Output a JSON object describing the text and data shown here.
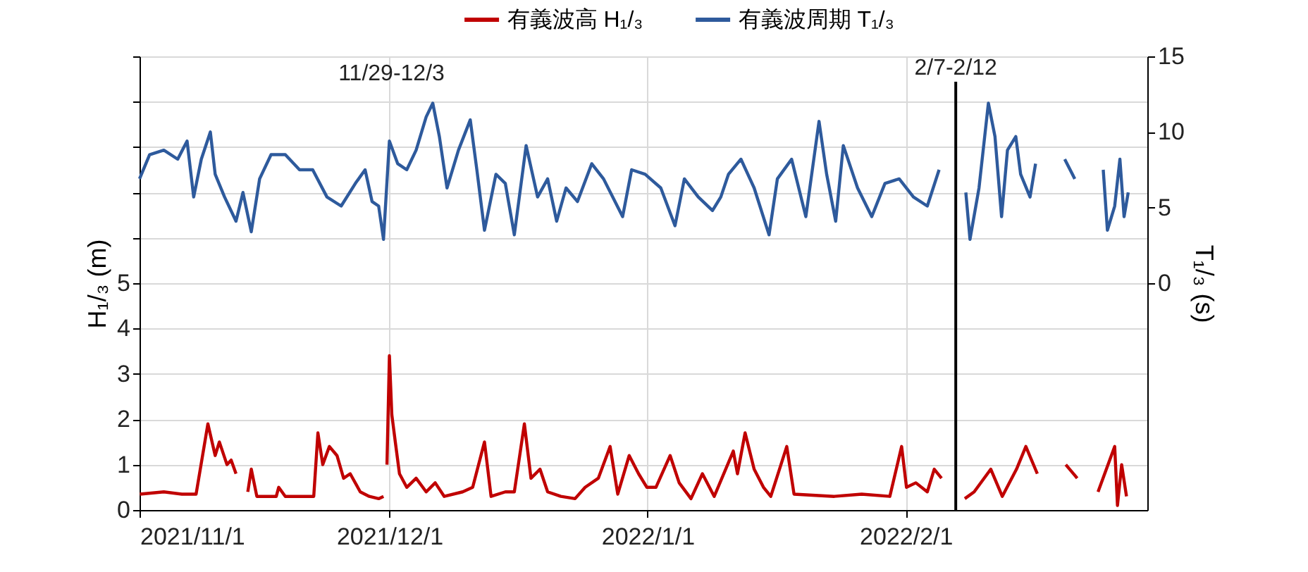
{
  "chart_data": {
    "type": "line",
    "xlabel": null,
    "ylabel": "H₁/₃ (m)",
    "y2label": "T₁/₃ (s)",
    "xlim": [
      "2021-11-01",
      "2022-03-02"
    ],
    "xticks": [
      {
        "value": "2021-11-01",
        "label": "2021/11/1"
      },
      {
        "value": "2021-12-01",
        "label": "2021/12/1"
      },
      {
        "value": "2022-01-01",
        "label": "2022/1/1"
      },
      {
        "value": "2022-02-01",
        "label": "2022/2/1"
      }
    ],
    "ylim": [
      0,
      10
    ],
    "yticks": [
      0,
      1,
      2,
      3,
      4,
      5,
      {
        "value": 6,
        "label": null
      },
      {
        "value": 7,
        "label": null
      },
      {
        "value": 8,
        "label": null
      },
      {
        "value": 9,
        "label": null
      },
      {
        "value": 10,
        "label": null
      }
    ],
    "y2lim": [
      -15,
      15
    ],
    "y2ticks": [
      0,
      5,
      10,
      15
    ],
    "grid": true,
    "legend": "top right",
    "line_style": "solid",
    "marker": "none",
    "ref_lines": [
      {
        "axis": "x",
        "value": "2022-02-07",
        "label": "2/7-2/12",
        "color": "#000000"
      }
    ],
    "annotations": [
      "11/29-12/3"
    ],
    "series": [
      {
        "name": "有義波高 H₁/₃",
        "color": "#c00000",
        "x": [
          "2021-11-01T01:00",
          "2021-11-03T22:00",
          "2021-11-06T02:00",
          "2021-11-07T19:00",
          "2021-11-09T05:00",
          "2021-11-10T02:00",
          "2021-11-10T14:00",
          "2021-11-11T12:00",
          "2021-11-12T00:00",
          "2021-11-12T14:00",
          "2021-11-13T06:00",
          "2021-11-14T00:00",
          "2021-11-14T10:00",
          "2021-11-15T02:00",
          "2021-11-17T10:00",
          "2021-11-17T17:00",
          "2021-11-18T12:00",
          "2021-11-21T22:00",
          "2021-11-22T10:00",
          "2021-11-23T00:00",
          "2021-11-23T19:00",
          "2021-11-24T17:00",
          "2021-11-25T12:00",
          "2021-11-26T07:00",
          "2021-11-27T12:00",
          "2021-11-28T14:00",
          "2021-11-29T17:00",
          "2021-11-30T07:00",
          "2021-11-30T12:00",
          "2021-11-30T17:00",
          "2021-12-01T00:00",
          "2021-12-01T07:00",
          "2021-12-01T17:00",
          "2021-12-02T05:00",
          "2021-12-03T02:00",
          "2021-12-04T05:00",
          "2021-12-05T10:00",
          "2021-12-06T12:00",
          "2021-12-07T14:00",
          "2021-12-09T19:00",
          "2021-12-11T00:00",
          "2021-12-12T10:00",
          "2021-12-13T05:00",
          "2021-12-14T22:00",
          "2021-12-16T00:00",
          "2021-12-17T05:00",
          "2021-12-18T00:00",
          "2021-12-19T02:00",
          "2021-12-20T00:00",
          "2021-12-21T14:00",
          "2021-12-23T07:00",
          "2021-12-24T12:00",
          "2021-12-26T02:00",
          "2021-12-27T12:00",
          "2021-12-28T10:00",
          "2021-12-29T19:00",
          "2021-12-30T22:00",
          "2021-12-31T22:00",
          "2022-01-02T00:00",
          "2022-01-03T17:00",
          "2022-01-04T19:00",
          "2022-01-06T05:00",
          "2022-01-07T14:00",
          "2022-01-09T00:00",
          "2022-01-11T07:00",
          "2022-01-11T19:00",
          "2022-01-12T17:00",
          "2022-01-13T19:00",
          "2022-01-14T22:00",
          "2022-01-15T19:00",
          "2022-01-17T17:00",
          "2022-01-18T14:00",
          "2022-01-23T10:00",
          "2022-01-26T17:00",
          "2022-01-30T02:00",
          "2022-01-31T12:00",
          "2022-02-01T02:00",
          "2022-02-02T05:00",
          "2022-02-03T14:00",
          "2022-02-04T10:00",
          "2022-02-05T07:00",
          "2022-02-06T12:00",
          "2022-02-08T02:00",
          "2022-02-09T05:00",
          "2022-02-11T05:00",
          "2022-02-12T14:00",
          "2022-02-14T07:00",
          "2022-02-15T10:00",
          "2022-02-16T19:00",
          "2022-02-18T12:00",
          "2022-02-20T05:00",
          "2022-02-21T14:00",
          "2022-02-23T00:00",
          "2022-02-24T02:00",
          "2022-02-26T02:00",
          "2022-02-26T10:00",
          "2022-02-26T22:00",
          "2022-02-27T12:00"
        ],
        "values": [
          0.35,
          0.4,
          0.35,
          0.35,
          1.9,
          1.2,
          1.5,
          1.0,
          1.1,
          0.8,
          null,
          0.4,
          0.9,
          0.3,
          0.3,
          0.5,
          0.3,
          0.3,
          1.7,
          1.0,
          1.4,
          1.2,
          0.7,
          0.8,
          0.4,
          0.3,
          0.25,
          0.3,
          null,
          1.0,
          3.4,
          2.1,
          1.5,
          0.8,
          0.5,
          0.7,
          0.4,
          0.6,
          0.3,
          0.4,
          0.5,
          1.5,
          0.3,
          0.4,
          0.4,
          1.9,
          0.7,
          0.9,
          0.4,
          0.3,
          0.25,
          0.5,
          0.7,
          1.4,
          0.35,
          1.2,
          0.8,
          0.5,
          0.5,
          1.2,
          0.6,
          0.25,
          0.8,
          0.3,
          1.3,
          0.8,
          1.7,
          0.9,
          0.5,
          0.3,
          1.4,
          0.35,
          0.3,
          0.35,
          0.3,
          1.4,
          0.5,
          0.6,
          0.4,
          0.9,
          0.7,
          null,
          0.25,
          0.4,
          0.9,
          0.3,
          0.9,
          1.4,
          0.8,
          null,
          1.0,
          0.7,
          null,
          0.4,
          1.4,
          0.1,
          1.0,
          0.3
        ]
      },
      {
        "name": "有義波周期 T₁/₃",
        "color": "#2e5a9c",
        "axis": "y2",
        "x": [
          "2021-11-01T00:00",
          "2021-11-02T05:00",
          "2021-11-03T22:00",
          "2021-11-05T14:00",
          "2021-11-06T17:00",
          "2021-11-07T12:00",
          "2021-11-08T10:00",
          "2021-11-09T12:00",
          "2021-11-10T02:00",
          "2021-11-11T05:00",
          "2021-11-12T14:00",
          "2021-11-13T10:00",
          "2021-11-14T10:00",
          "2021-11-15T10:00",
          "2021-11-16T19:00",
          "2021-11-18T12:00",
          "2021-11-20T05:00",
          "2021-11-21T19:00",
          "2021-11-23T12:00",
          "2021-11-25T05:00",
          "2021-11-26T22:00",
          "2021-11-28T02:00",
          "2021-11-28T22:00",
          "2021-11-29T17:00",
          "2021-11-30T07:00",
          "2021-12-01T00:00",
          "2021-12-02T00:00",
          "2021-12-03T02:00",
          "2021-12-04T05:00",
          "2021-12-05T10:00",
          "2021-12-06T05:00",
          "2021-12-07T00:00",
          "2021-12-07T22:00",
          "2021-12-09T07:00",
          "2021-12-10T17:00",
          "2021-12-11T12:00",
          "2021-12-12T10:00",
          "2021-12-13T19:00",
          "2021-12-14T22:00",
          "2021-12-16T00:00",
          "2021-12-17T10:00",
          "2021-12-18T19:00",
          "2021-12-20T00:00",
          "2021-12-21T02:00",
          "2021-12-22T05:00",
          "2021-12-23T14:00",
          "2021-12-25T07:00",
          "2021-12-26T17:00",
          "2021-12-29T00:00",
          "2021-12-30T02:00",
          "2021-12-31T17:00",
          "2022-01-02T14:00",
          "2022-01-04T07:00",
          "2022-01-05T10:00",
          "2022-01-07T02:00",
          "2022-01-08T19:00",
          "2022-01-09T19:00",
          "2022-01-10T17:00",
          "2022-01-12T05:00",
          "2022-01-13T19:00",
          "2022-01-15T14:00",
          "2022-01-16T14:00",
          "2022-01-18T07:00",
          "2022-01-20T00:00",
          "2022-01-21T14:00",
          "2022-01-22T12:00",
          "2022-01-23T14:00",
          "2022-01-24T12:00",
          "2022-01-26T05:00",
          "2022-01-27T22:00",
          "2022-01-29T12:00",
          "2022-01-31T05:00",
          "2022-02-01T22:00",
          "2022-02-03T14:00",
          "2022-02-05T00:00",
          "2022-02-06T12:00",
          "2022-02-08T05:00",
          "2022-02-08T17:00",
          "2022-02-09T19:00",
          "2022-02-10T22:00",
          "2022-02-11T17:00",
          "2022-02-12T12:00",
          "2022-02-13T05:00",
          "2022-02-14T05:00",
          "2022-02-14T19:00",
          "2022-02-15T22:00",
          "2022-02-16T14:00",
          "2022-02-18T12:00",
          "2022-02-20T02:00",
          "2022-02-21T07:00",
          "2022-02-23T00:00",
          "2022-02-24T17:00",
          "2022-02-25T05:00",
          "2022-02-26T02:00",
          "2022-02-26T17:00",
          "2022-02-27T05:00",
          "2022-02-27T17:00"
        ],
        "values": [
          6.9,
          8.5,
          8.8,
          8.2,
          9.4,
          5.7,
          8.2,
          10.0,
          7.2,
          5.7,
          4.1,
          6.0,
          3.4,
          6.9,
          8.5,
          8.5,
          7.5,
          7.5,
          5.7,
          5.1,
          6.6,
          7.5,
          5.4,
          5.1,
          2.9,
          9.4,
          7.9,
          7.5,
          8.8,
          11.0,
          11.9,
          9.7,
          6.3,
          8.8,
          10.8,
          7.5,
          3.5,
          7.2,
          6.6,
          3.2,
          9.1,
          5.7,
          6.9,
          4.1,
          6.3,
          5.4,
          7.9,
          6.9,
          4.4,
          7.5,
          7.2,
          6.3,
          3.8,
          6.9,
          5.7,
          4.8,
          5.7,
          7.2,
          8.2,
          6.3,
          3.2,
          6.9,
          8.2,
          4.4,
          10.7,
          7.2,
          4.1,
          9.1,
          6.3,
          4.4,
          6.6,
          6.9,
          5.7,
          5.1,
          7.5,
          null,
          6.0,
          2.9,
          6.3,
          11.9,
          9.7,
          4.4,
          8.8,
          9.7,
          7.2,
          5.7,
          7.9,
          null,
          8.2,
          6.9,
          null,
          7.5,
          3.5,
          5.1,
          8.2,
          4.4,
          6.0
        ]
      }
    ]
  }
}
